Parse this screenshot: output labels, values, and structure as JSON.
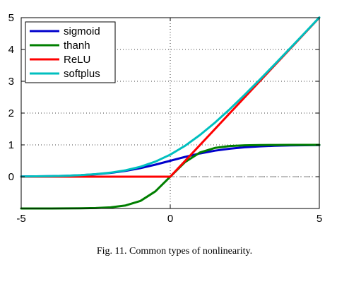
{
  "chart_data": {
    "type": "line",
    "title": "",
    "xlabel": "",
    "ylabel": "",
    "xlim": [
      -5,
      5
    ],
    "ylim": [
      -1,
      5
    ],
    "x_ticks": [
      -5,
      0,
      5
    ],
    "y_ticks": [
      0,
      1,
      2,
      3,
      4,
      5
    ],
    "grid": true,
    "legend_position": "top-left",
    "reference_line": {
      "y": 0,
      "style": "dash-dot",
      "color": "#808080"
    },
    "series": [
      {
        "name": "sigmoid",
        "color": "#0000cc",
        "x": [
          -5,
          -4.5,
          -4,
          -3.5,
          -3,
          -2.5,
          -2,
          -1.5,
          -1,
          -0.5,
          0,
          0.5,
          1,
          1.5,
          2,
          2.5,
          3,
          3.5,
          4,
          4.5,
          5
        ],
        "y": [
          0.007,
          0.011,
          0.018,
          0.029,
          0.047,
          0.076,
          0.119,
          0.182,
          0.269,
          0.378,
          0.5,
          0.622,
          0.731,
          0.818,
          0.881,
          0.924,
          0.953,
          0.971,
          0.982,
          0.989,
          0.993
        ]
      },
      {
        "name": "thanh",
        "color": "#007f00",
        "x": [
          -5,
          -4.5,
          -4,
          -3.5,
          -3,
          -2.5,
          -2,
          -1.5,
          -1,
          -0.5,
          0,
          0.5,
          1,
          1.5,
          2,
          2.5,
          3,
          3.5,
          4,
          4.5,
          5
        ],
        "y": [
          -1.0,
          -1.0,
          -0.999,
          -0.998,
          -0.995,
          -0.987,
          -0.964,
          -0.905,
          -0.762,
          -0.462,
          0,
          0.462,
          0.762,
          0.905,
          0.964,
          0.987,
          0.995,
          0.998,
          0.999,
          1.0,
          1.0
        ]
      },
      {
        "name": "ReLU",
        "color": "#ff0000",
        "x": [
          -5,
          0,
          5
        ],
        "y": [
          0,
          0,
          5
        ]
      },
      {
        "name": "softplus",
        "color": "#00bfbf",
        "x": [
          -5,
          -4.5,
          -4,
          -3.5,
          -3,
          -2.5,
          -2,
          -1.5,
          -1,
          -0.5,
          0,
          0.5,
          1,
          1.5,
          2,
          2.5,
          3,
          3.5,
          4,
          4.5,
          5
        ],
        "y": [
          0.007,
          0.011,
          0.018,
          0.03,
          0.049,
          0.079,
          0.127,
          0.201,
          0.313,
          0.474,
          0.693,
          0.974,
          1.313,
          1.701,
          2.127,
          2.579,
          3.049,
          3.53,
          4.018,
          4.511,
          5.007
        ]
      }
    ]
  },
  "caption": "Fig. 11. Common types of nonlinearity."
}
